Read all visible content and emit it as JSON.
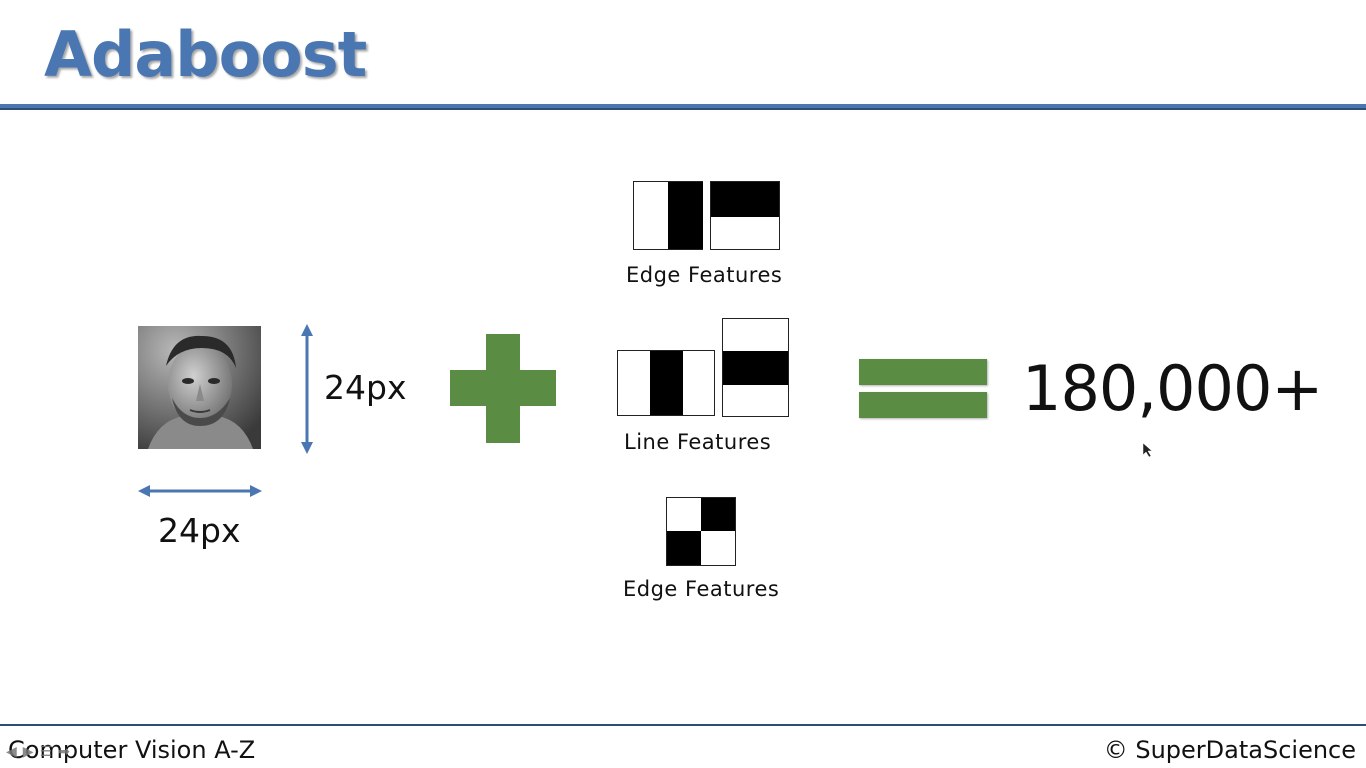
{
  "slide": {
    "title": "Adaboost"
  },
  "image": {
    "width_label": "24px",
    "height_label": "24px"
  },
  "features": {
    "edge_top_label": "Edge Features",
    "line_label": "Line Features",
    "edge_bottom_label": "Edge Features"
  },
  "result": {
    "value": "180,000+"
  },
  "footer": {
    "course": "Computer Vision A-Z",
    "copyright": "© SuperDataScience"
  },
  "colors": {
    "title_blue": "#4a76b2",
    "arrow_blue": "#4a76b2",
    "plus_green": "#5b8c44"
  },
  "icons": {
    "player_controls": [
      "prev-icon",
      "next-icon",
      "menu-icon",
      "forward-icon"
    ]
  }
}
